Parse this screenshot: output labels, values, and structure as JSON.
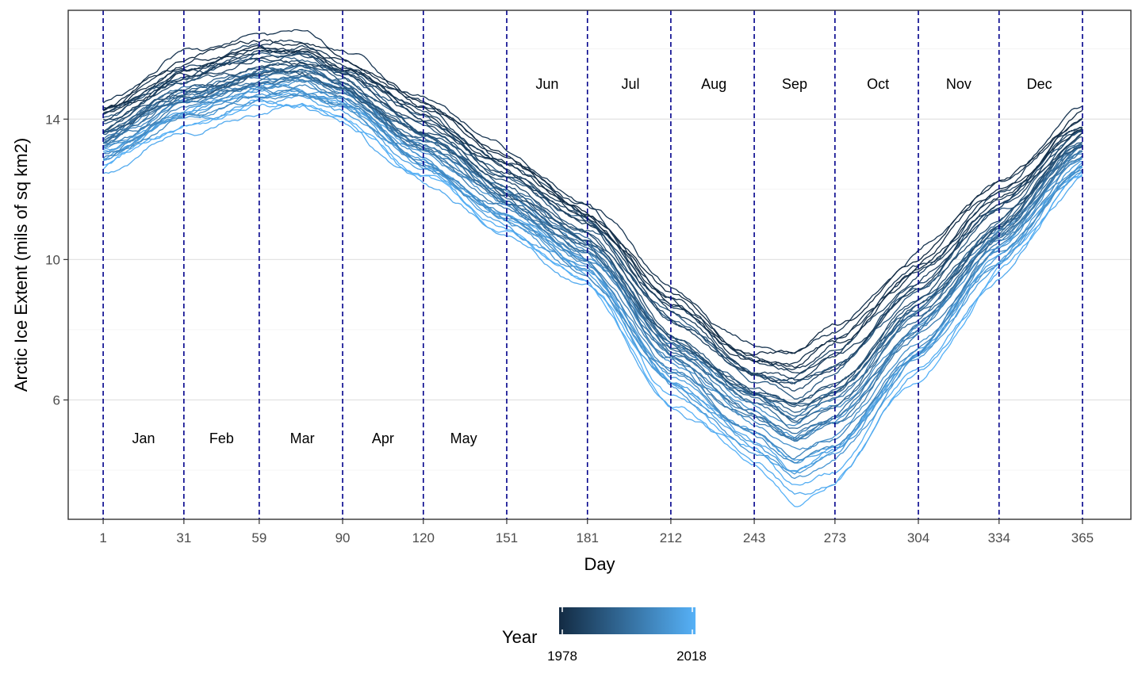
{
  "chart_data": {
    "type": "line",
    "xlabel": "Day",
    "ylabel": "Arctic Ice Extent (mils of sq km2)",
    "xlim": [
      -12,
      383
    ],
    "ylim": [
      2.6,
      17.1
    ],
    "x_ticks": [
      1,
      31,
      59,
      90,
      120,
      151,
      181,
      212,
      243,
      273,
      304,
      334,
      365
    ],
    "y_ticks": [
      6,
      10,
      14
    ],
    "grid": true,
    "month_boundaries": [
      1,
      31,
      59,
      90,
      120,
      151,
      181,
      212,
      243,
      273,
      304,
      334,
      365
    ],
    "month_labels": [
      {
        "text": "Jan",
        "day": 16,
        "y": 4.9
      },
      {
        "text": "Feb",
        "day": 45,
        "y": 4.9
      },
      {
        "text": "Mar",
        "day": 75,
        "y": 4.9
      },
      {
        "text": "Apr",
        "day": 105,
        "y": 4.9
      },
      {
        "text": "May",
        "day": 135,
        "y": 4.9
      },
      {
        "text": "Jun",
        "day": 166,
        "y": 15.0
      },
      {
        "text": "Jul",
        "day": 197,
        "y": 15.0
      },
      {
        "text": "Aug",
        "day": 228,
        "y": 15.0
      },
      {
        "text": "Sep",
        "day": 258,
        "y": 15.0
      },
      {
        "text": "Oct",
        "day": 289,
        "y": 15.0
      },
      {
        "text": "Nov",
        "day": 319,
        "y": 15.0
      },
      {
        "text": "Dec",
        "day": 349,
        "y": 15.0
      }
    ],
    "series_anchor_days": [
      1,
      31,
      60,
      75,
      90,
      120,
      151,
      181,
      212,
      243,
      258,
      273,
      304,
      334,
      365
    ],
    "series_earliest": [
      14.5,
      15.7,
      16.3,
      16.3,
      15.8,
      14.6,
      13.0,
      11.6,
      9.2,
      7.6,
      7.5,
      8.2,
      10.2,
      12.2,
      14.2
    ],
    "series_latest": [
      12.7,
      13.9,
      14.5,
      14.5,
      14.2,
      12.4,
      10.9,
      9.4,
      6.2,
      4.5,
      3.6,
      4.1,
      6.9,
      9.8,
      12.5
    ],
    "legend": {
      "title": "Year",
      "min_label": "1978",
      "max_label": "2018",
      "min_year": 1978,
      "max_year": 2018,
      "color_low": "#132B43",
      "color_high": "#56B1F7",
      "position": "bottom"
    },
    "vline_color": "#00008B"
  }
}
